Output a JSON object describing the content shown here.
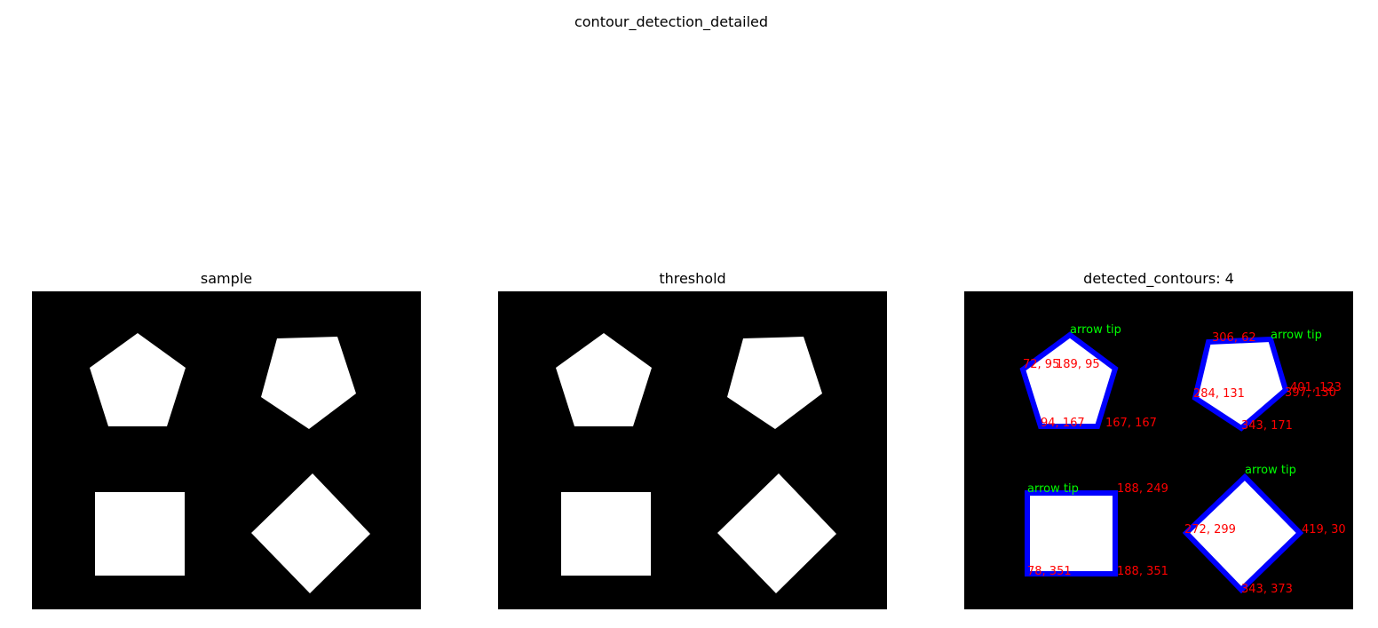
{
  "figure": {
    "title": "contour_detection_detailed"
  },
  "panels": [
    {
      "title": "sample"
    },
    {
      "title": "threshold"
    },
    {
      "title": "detected_contours: 4"
    }
  ],
  "colors": {
    "background": "#000000",
    "shape_fill": "#ffffff",
    "contour": "#0000ff",
    "vertex_label": "#ff0000",
    "tip_label": "#00ff00"
  },
  "annotations": {
    "tip_label": "arrow tip",
    "pentagon1": {
      "v1": "72, 95",
      "v2": "189, 95",
      "v3": "94, 167",
      "v4": "167, 167"
    },
    "pentagon2": {
      "v1": "306, 62",
      "v2": "284, 131",
      "v3": "401, 123",
      "v4": "397, 130",
      "v5": "343, 171"
    },
    "square": {
      "v1": "188, 249",
      "v2": "78, 351",
      "v3": "188, 351"
    },
    "diamond": {
      "v1": "272, 299",
      "v2": "419, 30",
      "v3": "343, 373"
    }
  }
}
